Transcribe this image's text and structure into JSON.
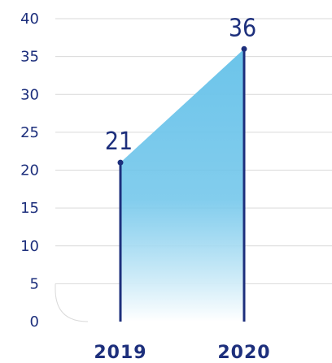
{
  "chart_data": {
    "type": "area",
    "x": [
      "2019",
      "2020"
    ],
    "values": [
      21,
      36
    ],
    "data_labels": [
      "21",
      "36"
    ],
    "ylim": [
      0,
      40
    ],
    "yticks": [
      0,
      5,
      10,
      15,
      20,
      25,
      30,
      35,
      40
    ],
    "grid": true,
    "colors": {
      "area_top": "#6cc4ea",
      "area_bottom": "#ffffff",
      "line": "#1d2f7c",
      "text": "#1d2f7c",
      "grid": "#d9d9d9"
    }
  }
}
